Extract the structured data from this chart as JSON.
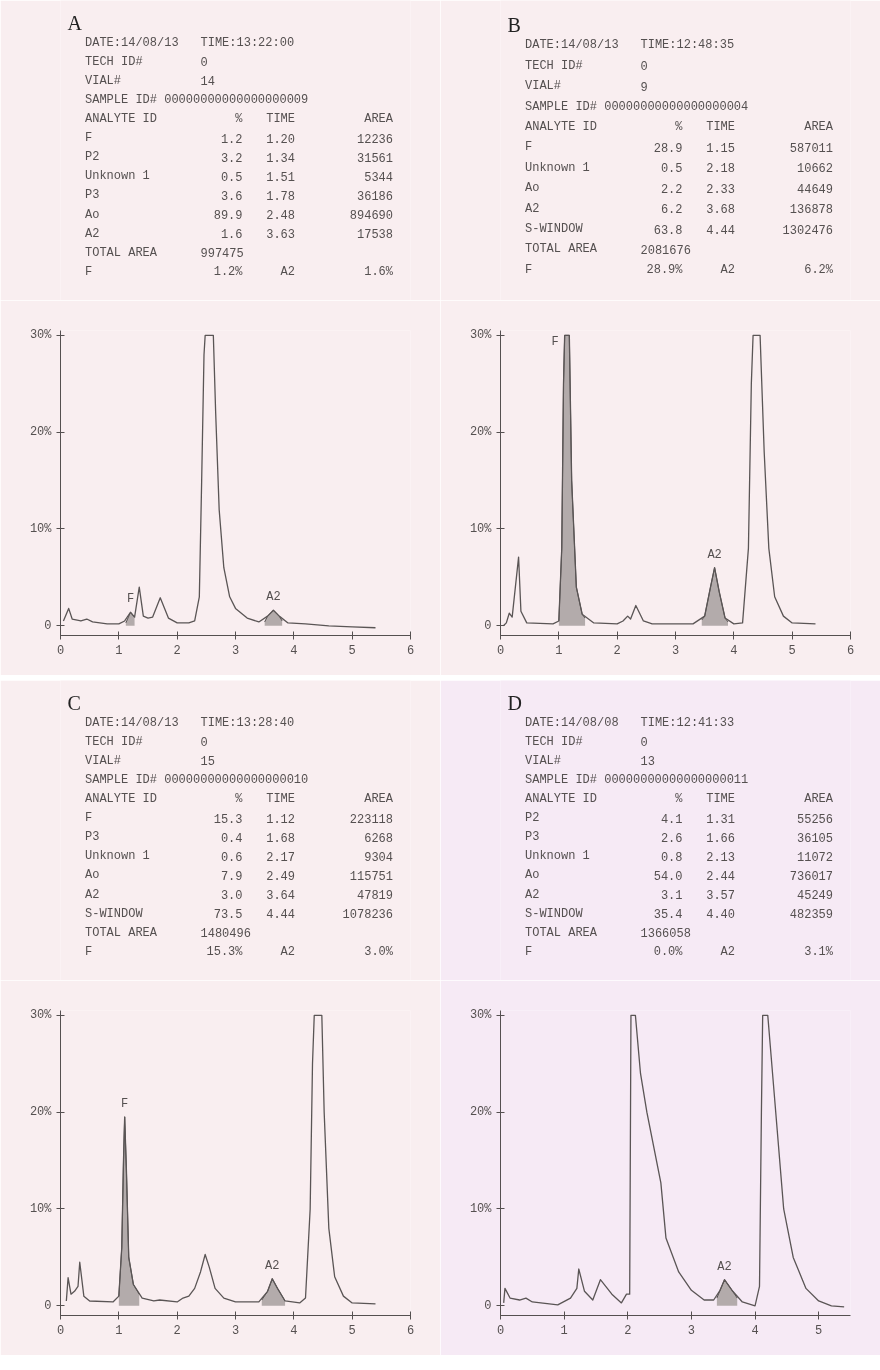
{
  "chart_data": [
    {
      "type": "line",
      "title": "A",
      "annotations": [
        "DATE:14/08/13  TIME:13:22:00",
        "TECH ID#  0",
        "VIAL#  14",
        "SAMPLE ID# 00000000000000000009",
        "ANALYTE ID  %  TIME  AREA",
        "F  1.2  1.20  12236",
        "P2  3.2  1.34  31561",
        "Unknown 1  0.5  1.51  5344",
        "P3  3.6  1.78  36186",
        "Ao  89.9  2.48  894690",
        "A2  1.6  3.63  17538",
        "TOTAL AREA  997475",
        "F  1.2%  A2  1.6%",
        {
          "text": "F",
          "x": 1.2,
          "y": 1.4
        },
        {
          "text": "A2",
          "x": 3.65,
          "y": 1.6
        }
      ],
      "series": [
        {
          "color": "#5a5555",
          "x": [
            0.05,
            0.14,
            0.2,
            0.35,
            0.45,
            0.55,
            0.8,
            1.0,
            1.1,
            1.2,
            1.27,
            1.35,
            1.42,
            1.5,
            1.58,
            1.71,
            1.85,
            2.0,
            2.2,
            2.3,
            2.38,
            2.42,
            2.46,
            2.48,
            2.62,
            2.66,
            2.72,
            2.8,
            2.9,
            3.0,
            3.2,
            3.4,
            3.55,
            3.65,
            3.75,
            3.9,
            4.2,
            4.6,
            5.0,
            5.4
          ],
          "values": [
            0.5,
            1.8,
            0.7,
            0.5,
            0.7,
            0.4,
            0.2,
            0.2,
            0.5,
            1.4,
            0.9,
            4.0,
            1.0,
            0.8,
            0.9,
            2.9,
            0.8,
            0.3,
            0.3,
            0.5,
            3,
            15,
            28,
            30,
            30,
            22,
            12,
            6,
            3,
            1.8,
            0.8,
            0.4,
            1.0,
            1.6,
            1.0,
            0.3,
            0.2,
            0.0,
            -0.1,
            -0.2
          ]
        },
        {
          "type": "area",
          "color": "#b3abab",
          "x": [
            1.12,
            1.2,
            1.27
          ],
          "values": [
            0.3,
            1.4,
            0.9
          ]
        },
        {
          "type": "area",
          "color": "#b3abab",
          "x": [
            3.5,
            3.55,
            3.65,
            3.75,
            3.8
          ],
          "values": [
            0.4,
            1.0,
            1.6,
            1.0,
            0.5
          ]
        }
      ],
      "xlim": [
        0,
        6
      ],
      "ylim": [
        -1,
        30.5
      ],
      "xticks": [
        0,
        1,
        2,
        3,
        4,
        5,
        6
      ],
      "yticks": [
        {
          "value": 0,
          "label": "0"
        },
        {
          "value": 10,
          "label": "10%"
        },
        {
          "value": 20,
          "label": "20%"
        },
        {
          "value": 30,
          "label": "30%"
        }
      ]
    },
    {
      "type": "line",
      "title": "B",
      "annotations": [
        "DATE:14/08/13  TIME:12:48:35",
        "TECH ID#  0",
        "VIAL#  9",
        "SAMPLE ID# 00000000000000000004",
        "ANALYTE ID  %  TIME  AREA",
        "F  28.9  1.15  587011",
        "Unknown 1  0.5  2.18  10662",
        "Ao  2.2  2.33  44649",
        "A2  6.2  3.68  136878",
        "S-WINDOW  63.8  4.44  1302476",
        "TOTAL AREA  2081676",
        "F  28.9%  A2  6.2%",
        {
          "text": "F",
          "x": 1.1,
          "y": 30
        },
        {
          "text": "A2",
          "x": 3.67,
          "y": 6.0
        }
      ],
      "series": [
        {
          "color": "#5a5555",
          "x": [
            0.05,
            0.1,
            0.15,
            0.2,
            0.31,
            0.35,
            0.45,
            0.9,
            1.0,
            1.05,
            1.08,
            1.1,
            1.18,
            1.22,
            1.3,
            1.4,
            1.6,
            2.0,
            2.1,
            2.18,
            2.23,
            2.32,
            2.45,
            2.6,
            3.3,
            3.5,
            3.6,
            3.67,
            3.75,
            3.85,
            4.0,
            4.15,
            4.25,
            4.3,
            4.33,
            4.45,
            4.52,
            4.6,
            4.7,
            4.85,
            5.0,
            5.4
          ],
          "values": [
            0,
            0.3,
            1.3,
            0.9,
            7.1,
            1.5,
            0.3,
            0.2,
            0.5,
            8,
            25,
            30,
            30,
            15,
            4,
            1.2,
            0.3,
            0.2,
            0.5,
            1.0,
            0.7,
            2.1,
            0.5,
            0.2,
            0.2,
            1.0,
            4,
            6.0,
            3.5,
            0.8,
            0.2,
            0.3,
            8,
            25,
            30,
            30,
            18,
            8,
            3,
            1.0,
            0.3,
            0.2
          ]
        },
        {
          "type": "area",
          "color": "#b3abab",
          "x": [
            1.0,
            1.05,
            1.08,
            1.1,
            1.18,
            1.22,
            1.3,
            1.4,
            1.45
          ],
          "values": [
            0.5,
            8,
            25,
            30,
            30,
            15,
            4,
            1.2,
            0.8
          ]
        },
        {
          "type": "area",
          "color": "#b3abab",
          "x": [
            3.45,
            3.5,
            3.6,
            3.67,
            3.75,
            3.85,
            3.9
          ],
          "values": [
            0.6,
            1.0,
            4,
            6.0,
            3.5,
            0.8,
            0.4
          ]
        }
      ],
      "xlim": [
        0,
        6
      ],
      "ylim": [
        -1,
        30.5
      ],
      "xticks": [
        0,
        1,
        2,
        3,
        4,
        5,
        6
      ],
      "yticks": [
        {
          "value": 0,
          "label": "0"
        },
        {
          "value": 10,
          "label": "10%"
        },
        {
          "value": 20,
          "label": "20%"
        },
        {
          "value": 30,
          "label": "30%"
        }
      ]
    },
    {
      "type": "line",
      "title": "C",
      "annotations": [
        "DATE:14/08/13  TIME:13:28:40",
        "TECH ID#  0",
        "VIAL#  15",
        "SAMPLE ID# 00000000000000000010",
        "ANALYTE ID  %  TIME  AREA",
        "F  15.3  1.12  223118",
        "P3  0.4  1.68  6268",
        "Unknown 1  0.6  2.17  9304",
        "Ao  7.9  2.49  115751",
        "A2  3.0  3.64  47819",
        "S-WINDOW  73.5  4.44  1078236",
        "TOTAL AREA  1480496",
        "F  15.3%  A2  3.0%",
        {
          "text": "F",
          "x": 1.1,
          "y": 19.5
        },
        {
          "text": "A2",
          "x": 3.63,
          "y": 2.8
        }
      ],
      "series": [
        {
          "color": "#5a5555",
          "x": [
            0.1,
            0.13,
            0.18,
            0.24,
            0.3,
            0.33,
            0.4,
            0.5,
            0.9,
            1.0,
            1.05,
            1.08,
            1.1,
            1.13,
            1.17,
            1.25,
            1.4,
            1.6,
            1.7,
            2.0,
            2.1,
            2.2,
            2.3,
            2.4,
            2.48,
            2.55,
            2.65,
            2.8,
            3.0,
            3.4,
            3.55,
            3.63,
            3.72,
            3.85,
            4.1,
            4.2,
            4.28,
            4.32,
            4.35,
            4.48,
            4.52,
            4.6,
            4.7,
            4.85,
            5.0,
            5.4
          ],
          "values": [
            0.5,
            2.9,
            1.2,
            1.5,
            2,
            4.5,
            1.0,
            0.5,
            0.4,
            1.0,
            6,
            15,
            19.5,
            14,
            5,
            2.2,
            0.8,
            0.5,
            0.6,
            0.4,
            0.8,
            1.0,
            1.8,
            3.5,
            5.3,
            4,
            1.8,
            0.8,
            0.4,
            0.4,
            1.5,
            2.8,
            1.8,
            0.5,
            0.3,
            0.8,
            10,
            25,
            30,
            30,
            20,
            8,
            3,
            1.0,
            0.3,
            0.2
          ]
        },
        {
          "type": "area",
          "color": "#b3abab",
          "x": [
            1.0,
            1.05,
            1.08,
            1.1,
            1.13,
            1.17,
            1.25,
            1.35
          ],
          "values": [
            1.0,
            6,
            15,
            19.5,
            14,
            5,
            2.2,
            1.2
          ]
        },
        {
          "type": "area",
          "color": "#b3abab",
          "x": [
            3.45,
            3.55,
            3.63,
            3.72,
            3.85
          ],
          "values": [
            0.6,
            1.5,
            2.8,
            1.8,
            0.5
          ]
        }
      ],
      "xlim": [
        0,
        6
      ],
      "ylim": [
        -1,
        30.5
      ],
      "xticks": [
        0,
        1,
        2,
        3,
        4,
        5,
        6
      ],
      "yticks": [
        {
          "value": 0,
          "label": "0"
        },
        {
          "value": 10,
          "label": "10%"
        },
        {
          "value": 20,
          "label": "20%"
        },
        {
          "value": 30,
          "label": "30%"
        }
      ]
    },
    {
      "type": "line",
      "title": "D",
      "annotations": [
        "DATE:14/08/08  TIME:12:41:33",
        "TECH ID#  0",
        "VIAL#  13",
        "SAMPLE ID# 00000000000000000011",
        "ANALYTE ID  %  TIME  AREA",
        "P2  4.1  1.31  55256",
        "P3  2.6  1.66  36105",
        "Unknown 1  0.8  2.13  11072",
        "Ao  54.0  2.44  736017",
        "A2  3.1  3.57  45249",
        "S-WINDOW  35.4  4.40  482359",
        "TOTAL AREA  1366058",
        "F  0.0%  A2  3.1%",
        {
          "text": "A2",
          "x": 3.52,
          "y": 2.7
        }
      ],
      "series": [
        {
          "color": "#5a5555",
          "x": [
            0.05,
            0.07,
            0.15,
            0.3,
            0.4,
            0.5,
            0.9,
            1.1,
            1.2,
            1.23,
            1.32,
            1.45,
            1.57,
            1.75,
            1.9,
            1.98,
            2.03,
            2.05,
            2.12,
            2.2,
            2.3,
            2.52,
            2.6,
            2.8,
            3.0,
            3.2,
            3.35,
            3.45,
            3.52,
            3.65,
            3.8,
            4.0,
            4.07,
            4.1,
            4.12,
            4.2,
            4.3,
            4.45,
            4.6,
            4.8,
            5.0,
            5.2,
            5.4
          ],
          "values": [
            0.3,
            1.8,
            0.8,
            0.6,
            0.8,
            0.4,
            0.1,
            0.8,
            1.8,
            3.8,
            1.5,
            0.6,
            2.7,
            1.2,
            0.3,
            1.2,
            1.2,
            30,
            30,
            24,
            20,
            12.7,
            7,
            3.5,
            1.6,
            0.6,
            0.6,
            1.6,
            2.7,
            1.5,
            0.4,
            0.0,
            2,
            20,
            30,
            30,
            22,
            10,
            5,
            1.8,
            0.5,
            0.0,
            -0.1
          ]
        },
        {
          "type": "area",
          "color": "#b3abab",
          "x": [
            3.4,
            3.45,
            3.52,
            3.65,
            3.72
          ],
          "values": [
            0.8,
            1.6,
            2.7,
            1.5,
            0.8
          ]
        }
      ],
      "xlim": [
        0,
        5.5
      ],
      "ylim": [
        -1,
        30.5
      ],
      "xticks": [
        0,
        1,
        2,
        3,
        4,
        5
      ],
      "yticks": [
        {
          "value": 0,
          "label": "0"
        },
        {
          "value": 10,
          "label": "10%"
        },
        {
          "value": 20,
          "label": "20%"
        },
        {
          "value": 30,
          "label": "30%"
        }
      ]
    }
  ]
}
